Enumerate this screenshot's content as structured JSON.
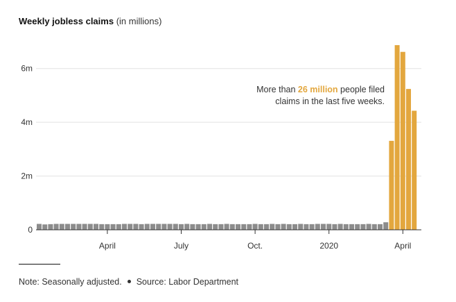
{
  "title": "Weekly jobless claims",
  "title_units": "(in millions)",
  "annotation": {
    "prefix": "More than",
    "highlight": "26 million",
    "suffix_line1": "people filed",
    "line2": "claims in the last five weeks."
  },
  "footer": {
    "note": "Note: Seasonally adjusted.",
    "source": "Source: Labor Department"
  },
  "colors": {
    "baseline_bars": "#8C8C8C",
    "recent_bars": "#E3A73E",
    "grid": "#E2E2E2",
    "axis": "#333333"
  },
  "chart_data": {
    "type": "bar",
    "unit": "millions",
    "ylim": [
      0,
      7
    ],
    "y_ticks": [
      {
        "value": 0,
        "label": "0"
      },
      {
        "value": 2,
        "label": "2m"
      },
      {
        "value": 4,
        "label": "4m"
      },
      {
        "value": 6,
        "label": "6m"
      }
    ],
    "x_ticks": [
      {
        "week_index": 12,
        "label": "April"
      },
      {
        "week_index": 25,
        "label": "July"
      },
      {
        "week_index": 38,
        "label": "Oct."
      },
      {
        "week_index": 51,
        "label": "2020"
      },
      {
        "week_index": 64,
        "label": "April"
      }
    ],
    "grid": true,
    "values": [
      0.22,
      0.2,
      0.21,
      0.22,
      0.22,
      0.22,
      0.22,
      0.22,
      0.22,
      0.22,
      0.22,
      0.21,
      0.21,
      0.21,
      0.21,
      0.22,
      0.22,
      0.22,
      0.21,
      0.22,
      0.22,
      0.22,
      0.22,
      0.22,
      0.22,
      0.21,
      0.22,
      0.21,
      0.21,
      0.21,
      0.22,
      0.21,
      0.21,
      0.22,
      0.21,
      0.21,
      0.21,
      0.21,
      0.22,
      0.21,
      0.21,
      0.22,
      0.21,
      0.22,
      0.21,
      0.21,
      0.22,
      0.21,
      0.21,
      0.22,
      0.22,
      0.22,
      0.21,
      0.22,
      0.21,
      0.21,
      0.21,
      0.21,
      0.22,
      0.21,
      0.21,
      0.28,
      3.31,
      6.87,
      6.62,
      5.24,
      4.43
    ],
    "highlight_from_index": 62
  }
}
